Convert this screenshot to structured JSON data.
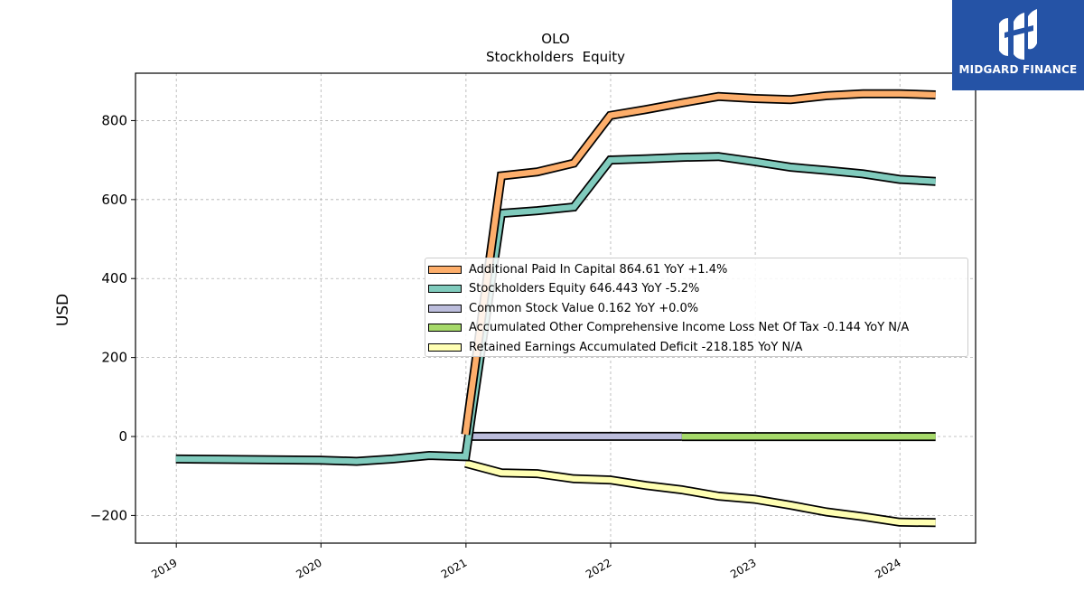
{
  "logo": {
    "brand": "MIDGARD FINANCE"
  },
  "chart_data": {
    "type": "line",
    "title": "OLO",
    "subtitle": "Stockholders  Equity",
    "ylabel": "USD",
    "xlabel": "",
    "xlim": [
      "2018-09-20",
      "2024-07-10"
    ],
    "ylim": [
      -270,
      920
    ],
    "yticks": [
      -200,
      0,
      200,
      400,
      600,
      800
    ],
    "ytick_labels": [
      "−200",
      "0",
      "200",
      "400",
      "600",
      "800"
    ],
    "xticks": [
      "2019-01-01",
      "2020-01-01",
      "2021-01-01",
      "2022-01-01",
      "2023-01-01",
      "2024-01-01"
    ],
    "xtick_labels": [
      "2019",
      "2020",
      "2021",
      "2022",
      "2023",
      "2024"
    ],
    "grid": true,
    "legend_position": "center-right",
    "series": [
      {
        "name": "Additional Paid In Capital  864.61 YoY +1.4%",
        "color": "#fdae6b",
        "x": [
          "2020-12-31",
          "2021-03-31",
          "2021-06-30",
          "2021-09-30",
          "2021-12-31",
          "2022-03-31",
          "2022-06-30",
          "2022-09-30",
          "2022-12-31",
          "2023-03-31",
          "2023-06-30",
          "2023-09-30",
          "2023-12-31",
          "2024-03-31"
        ],
        "y": [
          5,
          660,
          670,
          692,
          813,
          828,
          845,
          861,
          856,
          853,
          863,
          868,
          868,
          865
        ]
      },
      {
        "name": "Stockholders Equity  646.443 YoY -5.2%",
        "color": "#80cbbd",
        "x": [
          "2018-12-31",
          "2019-12-31",
          "2020-03-31",
          "2020-06-30",
          "2020-09-30",
          "2020-12-31",
          "2021-03-31",
          "2021-06-30",
          "2021-09-30",
          "2021-12-31",
          "2022-03-31",
          "2022-06-30",
          "2022-09-30",
          "2022-12-31",
          "2023-03-31",
          "2023-06-30",
          "2023-09-30",
          "2023-12-31",
          "2024-03-31"
        ],
        "y": [
          -57,
          -60,
          -63,
          -57,
          -48,
          -51,
          565,
          572,
          581,
          700,
          703,
          707,
          709,
          696,
          682,
          674,
          665,
          651,
          646
        ]
      },
      {
        "name": "Common Stock Value  0.162 YoY +0.0%",
        "color": "#bcbddc",
        "x": [
          "2020-12-31",
          "2022-06-30"
        ],
        "y": [
          0.16,
          0.16
        ]
      },
      {
        "name": "Accumulated Other Comprehensive Income Loss Net Of Tax  -0.144 YoY N/A",
        "color": "#a6d96a",
        "x": [
          "2022-06-30",
          "2024-03-31"
        ],
        "y": [
          -0.14,
          -0.14
        ]
      },
      {
        "name": "Retained Earnings Accumulated Deficit  -218.185 YoY N/A",
        "color": "#ffffb3",
        "x": [
          "2020-12-31",
          "2021-03-31",
          "2021-06-30",
          "2021-09-30",
          "2021-12-31",
          "2022-03-31",
          "2022-06-30",
          "2022-09-30",
          "2022-12-31",
          "2023-03-31",
          "2023-06-30",
          "2023-09-30",
          "2023-12-31",
          "2024-03-31"
        ],
        "y": [
          -68,
          -92,
          -94,
          -107,
          -110,
          -124,
          -135,
          -151,
          -159,
          -174,
          -191,
          -203,
          -217,
          -218
        ]
      }
    ]
  }
}
